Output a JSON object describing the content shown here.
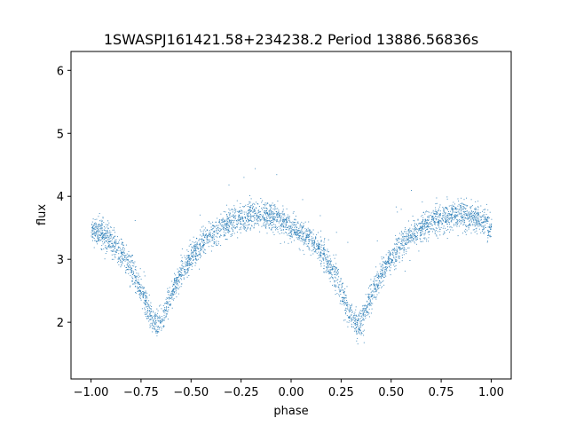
{
  "chart_data": {
    "type": "scatter",
    "title": "1SWASPJ161421.58+234238.2 Period 13886.56836s",
    "xlabel": "phase",
    "ylabel": "flux",
    "xlim": [
      -1.1,
      1.1
    ],
    "ylim": [
      1.1,
      6.3
    ],
    "x_ticks": [
      -1.0,
      -0.75,
      -0.5,
      -0.25,
      0.0,
      0.25,
      0.5,
      0.75,
      1.0
    ],
    "x_tick_labels": [
      "−1.00",
      "−0.75",
      "−0.50",
      "−0.25",
      "0.00",
      "0.25",
      "0.50",
      "0.75",
      "1.00"
    ],
    "y_ticks": [
      2,
      3,
      4,
      5,
      6
    ],
    "y_tick_labels": [
      "2",
      "3",
      "4",
      "5",
      "6"
    ],
    "grid": false,
    "marker_color": "#1f77b4",
    "series": [
      {
        "x": [
          -1.0,
          -0.95,
          -0.9,
          -0.85,
          -0.8,
          -0.75,
          -0.72,
          -0.69,
          -0.67,
          -0.64,
          -0.6,
          -0.55,
          -0.5,
          -0.45,
          -0.4,
          -0.35,
          -0.3,
          -0.25,
          -0.2,
          -0.15,
          -0.1,
          -0.05,
          0.0,
          0.05,
          0.1,
          0.15,
          0.2,
          0.25,
          0.28,
          0.31,
          0.33,
          0.36,
          0.4,
          0.45,
          0.5,
          0.55,
          0.6,
          0.65,
          0.7,
          0.75,
          0.8,
          0.85,
          0.9,
          0.95,
          1.0
        ],
        "y": [
          3.5,
          3.42,
          3.3,
          3.1,
          2.85,
          2.5,
          2.25,
          2.05,
          1.95,
          2.1,
          2.45,
          2.8,
          3.05,
          3.25,
          3.4,
          3.5,
          3.6,
          3.65,
          3.7,
          3.7,
          3.68,
          3.62,
          3.5,
          3.42,
          3.3,
          3.1,
          2.85,
          2.5,
          2.25,
          2.05,
          1.95,
          2.1,
          2.45,
          2.8,
          3.05,
          3.25,
          3.4,
          3.5,
          3.6,
          3.65,
          3.7,
          3.7,
          3.68,
          3.62,
          3.5
        ]
      }
    ]
  }
}
